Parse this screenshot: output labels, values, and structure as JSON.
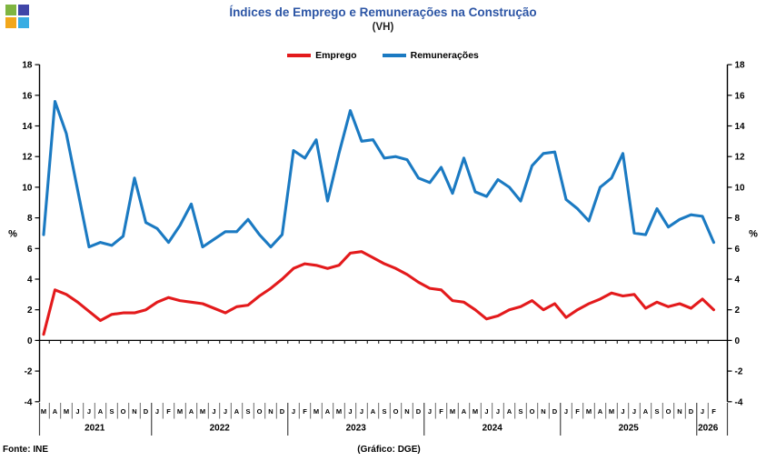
{
  "header": {
    "title": "Índices de Emprego e Remunerações na Construção",
    "subtitle": "(VH)"
  },
  "logo": {
    "name": "ine-logo",
    "colors": [
      "#7fb541",
      "#4046a8",
      "#f2a71b",
      "#38ade3"
    ]
  },
  "footer": {
    "source": "Fonte: INE",
    "credit": "(Gráfico: DGE)"
  },
  "chart_data": {
    "type": "line",
    "title": "Índices de Emprego e Remunerações na Construção (VH)",
    "xlabel": "",
    "ylabel": "%",
    "ylim": [
      -4,
      18
    ],
    "y_step": 2,
    "grid": false,
    "legend_position": "top-center",
    "axis_mirrored": true,
    "year_groups": [
      {
        "label": "2021",
        "months": [
          "M",
          "A",
          "M",
          "J",
          "J",
          "A",
          "S",
          "O",
          "N",
          "D"
        ]
      },
      {
        "label": "2022",
        "months": [
          "J",
          "F",
          "M",
          "A",
          "M",
          "J",
          "J",
          "A",
          "S",
          "O",
          "N",
          "D"
        ]
      },
      {
        "label": "2023",
        "months": [
          "J",
          "F",
          "M",
          "A",
          "M",
          "J",
          "J",
          "A",
          "S",
          "O",
          "N",
          "D"
        ]
      },
      {
        "label": "2024",
        "months": [
          "J",
          "F",
          "M",
          "A",
          "M",
          "J",
          "J",
          "A",
          "S",
          "O",
          "N",
          "D"
        ]
      },
      {
        "label": "2025",
        "months": [
          "J",
          "F",
          "M",
          "A",
          "M",
          "J",
          "J",
          "A",
          "S",
          "O",
          "N",
          "D"
        ]
      },
      {
        "label": "2026",
        "months": [
          "J",
          "F"
        ]
      }
    ],
    "series": [
      {
        "name": "Emprego",
        "color": "#e31a1c",
        "values": [
          0.4,
          3.3,
          3.0,
          2.5,
          1.9,
          1.3,
          1.7,
          1.8,
          1.8,
          2.0,
          2.5,
          2.8,
          2.6,
          2.5,
          2.4,
          2.1,
          1.8,
          2.2,
          2.3,
          2.9,
          3.4,
          4.0,
          4.7,
          5.0,
          4.9,
          4.7,
          4.9,
          5.7,
          5.8,
          5.4,
          5.0,
          4.7,
          4.3,
          3.8,
          3.4,
          3.3,
          2.6,
          2.5,
          2.0,
          1.4,
          1.6,
          2.0,
          2.2,
          2.6,
          2.0,
          2.4,
          1.5,
          2.0,
          2.4,
          2.7,
          3.1,
          2.9,
          3.0,
          2.1,
          2.5,
          2.2,
          2.4,
          2.1,
          2.7,
          2.0
        ]
      },
      {
        "name": "Remunerações",
        "color": "#1b7ac2",
        "values": [
          6.9,
          15.6,
          13.5,
          9.8,
          6.1,
          6.4,
          6.2,
          6.8,
          10.6,
          7.7,
          7.3,
          6.4,
          7.5,
          8.9,
          6.1,
          6.6,
          7.1,
          7.1,
          7.9,
          6.9,
          6.1,
          6.9,
          12.4,
          11.9,
          13.1,
          9.1,
          12.2,
          15.0,
          13.0,
          13.1,
          11.9,
          12.0,
          11.8,
          10.6,
          10.3,
          11.3,
          9.6,
          11.9,
          9.7,
          9.4,
          10.5,
          10.0,
          9.1,
          11.4,
          12.2,
          12.3,
          9.2,
          8.6,
          7.8,
          10.0,
          10.6,
          12.2,
          7.0,
          6.9,
          8.6,
          7.4,
          7.9,
          8.2,
          8.1,
          6.4
        ]
      }
    ],
    "title_color": "#2c55a5"
  }
}
